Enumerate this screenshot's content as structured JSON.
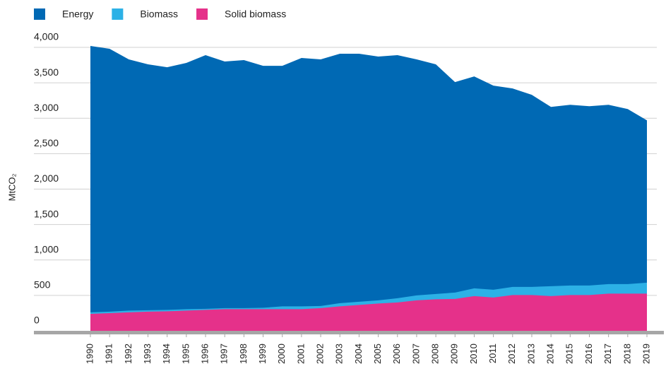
{
  "chart_data": {
    "type": "area",
    "y_axis_label": "MtCO₂",
    "categories": [
      "1990",
      "1991",
      "1992",
      "1993",
      "1994",
      "1995",
      "1996",
      "1997",
      "1998",
      "1999",
      "2000",
      "2001",
      "2002",
      "2003",
      "2004",
      "2005",
      "2006",
      "2007",
      "2008",
      "2009",
      "2010",
      "2011",
      "2012",
      "2013",
      "2014",
      "2015",
      "2016",
      "2017",
      "2018",
      "2019"
    ],
    "series": [
      {
        "name": "Energy",
        "color": "#0069b4",
        "values": [
          4020,
          3980,
          3830,
          3760,
          3720,
          3780,
          3890,
          3800,
          3820,
          3740,
          3740,
          3850,
          3830,
          3910,
          3910,
          3870,
          3890,
          3830,
          3760,
          3510,
          3590,
          3460,
          3420,
          3330,
          3160,
          3190,
          3170,
          3190,
          3130,
          2970
        ]
      },
      {
        "name": "Biomass",
        "color": "#2cb1e6",
        "values": [
          260,
          270,
          285,
          290,
          295,
          305,
          310,
          320,
          320,
          325,
          345,
          345,
          350,
          390,
          410,
          430,
          460,
          500,
          520,
          540,
          600,
          580,
          620,
          620,
          630,
          640,
          640,
          660,
          660,
          680
        ]
      },
      {
        "name": "Solid biomass",
        "color": "#e5318a",
        "values": [
          240,
          250,
          260,
          270,
          275,
          285,
          295,
          305,
          305,
          305,
          305,
          305,
          320,
          345,
          365,
          385,
          400,
          430,
          445,
          450,
          490,
          470,
          505,
          505,
          490,
          505,
          505,
          525,
          525,
          525
        ]
      }
    ],
    "ylim": [
      0,
      4000
    ],
    "yticks": [
      {
        "value": 0,
        "label": "0"
      },
      {
        "value": 500,
        "label": "500"
      },
      {
        "value": 1000,
        "label": "1,000"
      },
      {
        "value": 1500,
        "label": "1,500"
      },
      {
        "value": 2000,
        "label": "2,000"
      },
      {
        "value": 2500,
        "label": "2,500"
      },
      {
        "value": 3000,
        "label": "3,000"
      },
      {
        "value": 3500,
        "label": "3,500"
      },
      {
        "value": 4000,
        "label": "4,000"
      }
    ],
    "grid": true,
    "legend": "top-left"
  }
}
